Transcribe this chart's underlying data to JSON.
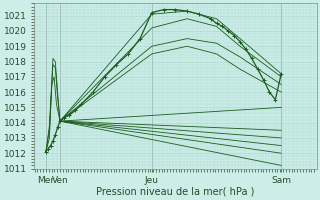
{
  "xlabel": "Pression niveau de la mer( hPa )",
  "bg_color": "#cceee8",
  "grid_color": "#aad4cc",
  "line_color": "#1a5c1a",
  "xlim": [
    0,
    240
  ],
  "ylim": [
    1011.0,
    1021.8
  ],
  "yticks": [
    1011,
    1012,
    1013,
    1014,
    1015,
    1016,
    1017,
    1018,
    1019,
    1020,
    1021
  ],
  "xtick_positions": [
    10,
    22,
    100,
    210
  ],
  "xtick_labels": [
    "Mer",
    "Ven",
    "Jeu",
    "Sam"
  ],
  "day_lines": [
    10,
    22,
    100,
    210
  ],
  "convergence_x": 22,
  "convergence_y": 1014.1,
  "fan_lines": [
    {
      "x": [
        22,
        100,
        130,
        155,
        175,
        210
      ],
      "y": [
        1014.1,
        1021.1,
        1021.3,
        1020.8,
        1019.5,
        1017.2
      ]
    },
    {
      "x": [
        22,
        100,
        130,
        155,
        175,
        210
      ],
      "y": [
        1014.1,
        1020.2,
        1020.8,
        1020.3,
        1019.0,
        1017.0
      ]
    },
    {
      "x": [
        22,
        100,
        130,
        155,
        175,
        210
      ],
      "y": [
        1014.1,
        1019.0,
        1019.5,
        1019.2,
        1018.3,
        1016.5
      ]
    },
    {
      "x": [
        22,
        100,
        130,
        155,
        175,
        210
      ],
      "y": [
        1014.1,
        1018.5,
        1019.0,
        1018.5,
        1017.5,
        1016.0
      ]
    },
    {
      "x": [
        22,
        210
      ],
      "y": [
        1014.1,
        1015.0
      ]
    },
    {
      "x": [
        22,
        210
      ],
      "y": [
        1014.1,
        1013.5
      ]
    },
    {
      "x": [
        22,
        210
      ],
      "y": [
        1014.1,
        1013.0
      ]
    },
    {
      "x": [
        22,
        210
      ],
      "y": [
        1014.1,
        1012.5
      ]
    },
    {
      "x": [
        22,
        210
      ],
      "y": [
        1014.1,
        1012.0
      ]
    },
    {
      "x": [
        22,
        210
      ],
      "y": [
        1014.1,
        1011.2
      ]
    }
  ],
  "main_line_x": [
    10,
    12,
    14,
    16,
    18,
    20,
    22,
    25,
    30,
    35,
    40,
    50,
    60,
    70,
    80,
    90,
    100,
    110,
    120,
    130,
    140,
    150,
    155,
    160,
    165,
    170,
    175,
    180,
    185,
    190,
    195,
    200,
    205,
    210
  ],
  "main_line_y": [
    1012.1,
    1012.3,
    1012.5,
    1012.8,
    1013.2,
    1013.7,
    1014.1,
    1014.3,
    1014.5,
    1014.8,
    1015.2,
    1016.0,
    1017.0,
    1017.8,
    1018.5,
    1019.5,
    1021.2,
    1021.4,
    1021.4,
    1021.3,
    1021.1,
    1020.8,
    1020.5,
    1020.3,
    1020.0,
    1019.7,
    1019.3,
    1018.8,
    1018.2,
    1017.5,
    1016.8,
    1016.0,
    1015.5,
    1017.2
  ],
  "loop_lines": [
    {
      "x": [
        10,
        13,
        16,
        18,
        20,
        22
      ],
      "y": [
        1012.1,
        1013.8,
        1018.2,
        1018.0,
        1016.0,
        1014.1
      ]
    },
    {
      "x": [
        10,
        13,
        16,
        18,
        20,
        22
      ],
      "y": [
        1012.1,
        1013.5,
        1017.8,
        1017.6,
        1015.6,
        1014.1
      ]
    },
    {
      "x": [
        10,
        13,
        15,
        17,
        19,
        22
      ],
      "y": [
        1012.1,
        1013.0,
        1016.5,
        1017.0,
        1015.2,
        1014.1
      ]
    }
  ]
}
